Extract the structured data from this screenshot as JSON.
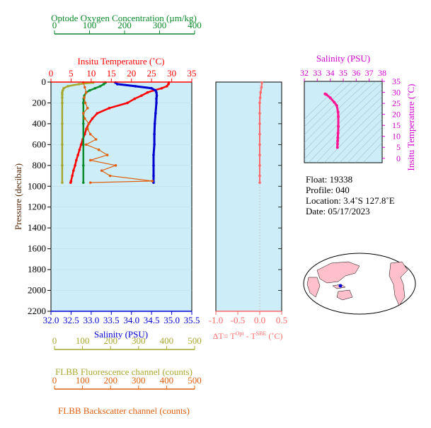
{
  "colors": {
    "panel_bg": "#cdeef8",
    "oxygen": "#0a8a2a",
    "temperature": "#ff0000",
    "salinity": "#0000d0",
    "fluorescence": "#a8a830",
    "backscatter": "#e06010",
    "delta_t": "#ff6a6a",
    "ts_axis": "#d000d0",
    "ts_curve": "#ff1493",
    "land": "#ffc0cb"
  },
  "axes": {
    "oxygen": {
      "title": "Optode Oxygen Concentration (µm/kg)",
      "ticks": [
        "0",
        "100",
        "200",
        "300",
        "400"
      ]
    },
    "temperature": {
      "title": "Insitu Temperature (˚C)",
      "ticks": [
        "0",
        "5",
        "10",
        "15",
        "20",
        "25",
        "30",
        "35"
      ]
    },
    "pressure": {
      "title": "Pressure (decibar)",
      "ticks": [
        "0",
        "200",
        "400",
        "600",
        "800",
        "1000",
        "1200",
        "1400",
        "1600",
        "1800",
        "2000",
        "2200"
      ]
    },
    "salinity": {
      "title": "Salinity (PSU)",
      "ticks": [
        "32.0",
        "32.5",
        "33.0",
        "33.5",
        "34.0",
        "34.5",
        "35.0",
        "35.5"
      ]
    },
    "delta_t": {
      "title_prefix": "ΔT= T",
      "title_sup1": "Opt",
      "title_mid": " - T",
      "title_sup2": "SBE",
      "title_suffix": " (˚C)",
      "ticks": [
        "-1.0",
        "-0.5",
        "0.0",
        "0.5"
      ]
    },
    "fluorescence": {
      "title": "FLBB Fluorescence channel (counts)",
      "ticks": [
        "0",
        "100",
        "200",
        "300",
        "400",
        "500"
      ]
    },
    "backscatter": {
      "title": "FLBB Backscatter channel (counts)",
      "ticks": [
        "0",
        "100",
        "200",
        "300",
        "400",
        "500"
      ]
    },
    "ts_salinity": {
      "title": "Salinity (PSU)",
      "ticks": [
        "32",
        "33",
        "34",
        "35",
        "36",
        "37",
        "38"
      ]
    },
    "ts_temperature": {
      "title": "Insitu Temperature (˚C)",
      "ticks": [
        "0",
        "5",
        "10",
        "15",
        "20",
        "25",
        "30",
        "35"
      ]
    }
  },
  "info": {
    "float": "Float:  19338",
    "profile": "Profile:  040",
    "location": "Location:  3.4˚S  127.8˚E",
    "date": "Date:  05/17/2023"
  },
  "chart_data": [
    {
      "type": "line",
      "panel": "profiles",
      "ylabel": "Pressure (decibar)",
      "ylim": [
        2200,
        0
      ],
      "series": [
        {
          "name": "Insitu Temperature",
          "unit": "˚C",
          "xlim": [
            0,
            35
          ],
          "pressure": [
            5,
            20,
            40,
            60,
            80,
            100,
            130,
            160,
            200,
            250,
            300,
            350,
            400,
            450,
            500,
            550,
            600,
            650,
            700,
            750,
            800,
            850,
            900,
            950,
            965
          ],
          "values": [
            29.3,
            29.2,
            28.8,
            27.5,
            25.5,
            24.0,
            22.5,
            20.8,
            19.0,
            14.5,
            11.5,
            10.3,
            9.4,
            8.8,
            8.4,
            7.9,
            7.5,
            7.1,
            6.7,
            6.3,
            6.0,
            5.6,
            5.3,
            5.0,
            4.9
          ]
        },
        {
          "name": "Salinity",
          "unit": "PSU",
          "xlim": [
            32.0,
            35.5
          ],
          "pressure": [
            5,
            20,
            40,
            60,
            80,
            100,
            130,
            160,
            200,
            300,
            400,
            500,
            600,
            700,
            800,
            900,
            965
          ],
          "values": [
            33.6,
            33.65,
            34.1,
            34.5,
            34.6,
            34.62,
            34.63,
            34.62,
            34.62,
            34.6,
            34.58,
            34.57,
            34.57,
            34.55,
            34.55,
            34.55,
            34.55
          ]
        },
        {
          "name": "Optode Oxygen Concentration",
          "unit": "µm/kg",
          "xlim": [
            0,
            400
          ],
          "pressure": [
            5,
            20,
            40,
            60,
            80,
            100,
            130,
            160,
            200,
            300,
            400,
            600,
            800,
            965
          ],
          "values": [
            155,
            150,
            140,
            125,
            110,
            100,
            95,
            93,
            92,
            92,
            92,
            92,
            92,
            92
          ]
        },
        {
          "name": "FLBB Fluorescence channel",
          "unit": "counts",
          "xlim": [
            0,
            500
          ],
          "pressure": [
            5,
            20,
            40,
            60,
            80,
            100,
            120,
            150,
            200,
            400,
            600,
            800,
            965
          ],
          "values": [
            150,
            100,
            60,
            45,
            42,
            40,
            40,
            40,
            40,
            40,
            40,
            40,
            40
          ]
        },
        {
          "name": "FLBB Backscatter channel",
          "unit": "counts",
          "xlim": [
            0,
            500
          ],
          "pressure": [
            5,
            50,
            100,
            150,
            200,
            250,
            300,
            350,
            400,
            450,
            500,
            550,
            600,
            650,
            700,
            750,
            800,
            850,
            900,
            950,
            965
          ],
          "values": [
            115,
            120,
            125,
            118,
            122,
            130,
            115,
            120,
            135,
            130,
            140,
            160,
            125,
            170,
            200,
            140,
            230,
            180,
            210,
            360,
            140
          ]
        }
      ]
    },
    {
      "type": "scatter",
      "panel": "delta_t",
      "xlim": [
        -1.0,
        0.5
      ],
      "ylim": [
        2200,
        0
      ],
      "pressure": [
        5,
        50,
        100,
        150,
        200,
        300,
        400,
        500,
        600,
        700,
        800,
        900,
        965
      ],
      "values": [
        0.05,
        0.04,
        0.02,
        0.01,
        0.0,
        0.0,
        0.0,
        0.0,
        0.0,
        0.0,
        0.0,
        0.0,
        0.0
      ]
    },
    {
      "type": "line",
      "panel": "ts_diagram",
      "xlabel": "Salinity (PSU)",
      "ylabel": "Insitu Temperature (˚C)",
      "xlim": [
        32,
        38
      ],
      "ylim": [
        -2,
        35
      ],
      "salinity": [
        33.6,
        33.7,
        34.0,
        34.3,
        34.5,
        34.6,
        34.62,
        34.62,
        34.6,
        34.58,
        34.57,
        34.56,
        34.55
      ],
      "temperature": [
        29.3,
        29.0,
        27.5,
        25.5,
        24.0,
        21.0,
        19.0,
        14.5,
        11.5,
        9.4,
        8.0,
        6.5,
        4.9
      ]
    }
  ]
}
